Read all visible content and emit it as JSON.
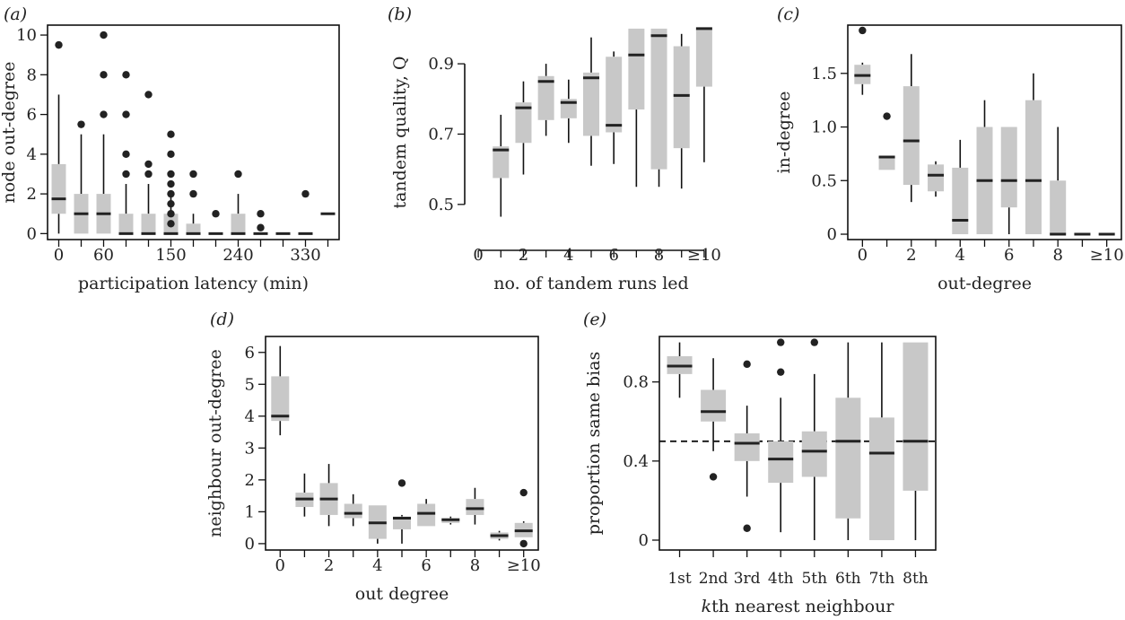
{
  "chart_data": [
    {
      "panel": "(a)",
      "type": "boxplot",
      "xlabel": "participation latency (min)",
      "ylabel": "node out-degree",
      "x_tick_labels": [
        "0",
        "60",
        "150",
        "240",
        "330"
      ],
      "x_tick_values": [
        0,
        60,
        150,
        240,
        330
      ],
      "x_box_spacing": 30,
      "xlim": [
        -15,
        375
      ],
      "y_ticks": [
        0,
        2,
        4,
        6,
        8,
        10
      ],
      "ylim": [
        -0.3,
        10.5
      ],
      "boxes": [
        {
          "x": 0,
          "q1": 1,
          "median": 1.75,
          "q3": 3.5,
          "whisker_low": 0,
          "whisker_high": 7,
          "outliers": [
            9.5
          ]
        },
        {
          "x": 30,
          "q1": 0,
          "median": 1,
          "q3": 2,
          "whisker_low": 0,
          "whisker_high": 5,
          "outliers": [
            5.5
          ]
        },
        {
          "x": 60,
          "q1": 0,
          "median": 1,
          "q3": 2,
          "whisker_low": 0,
          "whisker_high": 5,
          "outliers": [
            6,
            8,
            10
          ]
        },
        {
          "x": 90,
          "q1": 0,
          "median": 0,
          "q3": 1,
          "whisker_low": 0,
          "whisker_high": 2.5,
          "outliers": [
            3,
            4,
            6,
            8
          ]
        },
        {
          "x": 120,
          "q1": 0,
          "median": 0,
          "q3": 1,
          "whisker_low": 0,
          "whisker_high": 2.5,
          "outliers": [
            3,
            3.5,
            7
          ]
        },
        {
          "x": 150,
          "q1": 0,
          "median": 0,
          "q3": 1,
          "whisker_low": 0,
          "whisker_high": 2,
          "outliers": [
            0.5,
            1,
            1.5,
            2,
            2.5,
            3,
            4,
            5
          ]
        },
        {
          "x": 180,
          "q1": 0,
          "median": 0,
          "q3": 0.5,
          "whisker_low": 0,
          "whisker_high": 1,
          "outliers": [
            2,
            3
          ]
        },
        {
          "x": 210,
          "q1": 0,
          "median": 0,
          "q3": 0,
          "whisker_low": 0,
          "whisker_high": 0,
          "outliers": [
            1
          ]
        },
        {
          "x": 240,
          "q1": 0,
          "median": 0,
          "q3": 1,
          "whisker_low": 0,
          "whisker_high": 2,
          "outliers": [
            3
          ]
        },
        {
          "x": 270,
          "q1": 0,
          "median": 0,
          "q3": 0,
          "whisker_low": 0,
          "whisker_high": 0,
          "outliers": [
            0.3,
            1
          ]
        },
        {
          "x": 300,
          "q1": 0,
          "median": 0,
          "q3": 0,
          "whisker_low": 0,
          "whisker_high": 0,
          "outliers": []
        },
        {
          "x": 330,
          "q1": 0,
          "median": 0,
          "q3": 0,
          "whisker_low": 0,
          "whisker_high": 0,
          "outliers": [
            2
          ]
        },
        {
          "x": 360,
          "q1": 1,
          "median": 1,
          "q3": 1,
          "whisker_low": 1,
          "whisker_high": 1,
          "outliers": []
        }
      ]
    },
    {
      "panel": "(b)",
      "type": "boxplot",
      "xlabel": "no. of tandem runs led",
      "ylabel": "tandem quality, Q",
      "x_tick_labels": [
        "0",
        "2",
        "4",
        "6",
        "8",
        "≥10"
      ],
      "x_tick_values": [
        0,
        2,
        4,
        6,
        8,
        10
      ],
      "xlim": [
        -0.6,
        10.6
      ],
      "y_ticks": [
        0.5,
        0.7,
        0.9
      ],
      "ylim": [
        0.4,
        1.01
      ],
      "boxes": [
        {
          "x": 1,
          "q1": 0.575,
          "median": 0.655,
          "q3": 0.665,
          "whisker_low": 0.465,
          "whisker_high": 0.755,
          "outliers": []
        },
        {
          "x": 2,
          "q1": 0.675,
          "median": 0.775,
          "q3": 0.79,
          "whisker_low": 0.585,
          "whisker_high": 0.85,
          "outliers": []
        },
        {
          "x": 3,
          "q1": 0.74,
          "median": 0.85,
          "q3": 0.865,
          "whisker_low": 0.695,
          "whisker_high": 0.9,
          "outliers": []
        },
        {
          "x": 4,
          "q1": 0.745,
          "median": 0.79,
          "q3": 0.8,
          "whisker_low": 0.675,
          "whisker_high": 0.855,
          "outliers": []
        },
        {
          "x": 5,
          "q1": 0.695,
          "median": 0.86,
          "q3": 0.875,
          "whisker_low": 0.61,
          "whisker_high": 0.975,
          "outliers": []
        },
        {
          "x": 6,
          "q1": 0.705,
          "median": 0.725,
          "q3": 0.92,
          "whisker_low": 0.615,
          "whisker_high": 0.935,
          "outliers": []
        },
        {
          "x": 7,
          "q1": 0.77,
          "median": 0.925,
          "q3": 1.0,
          "whisker_low": 0.55,
          "whisker_high": 1.0,
          "outliers": []
        },
        {
          "x": 8,
          "q1": 0.6,
          "median": 0.98,
          "q3": 1.0,
          "whisker_low": 0.55,
          "whisker_high": 1.0,
          "outliers": []
        },
        {
          "x": 9,
          "q1": 0.66,
          "median": 0.81,
          "q3": 0.95,
          "whisker_low": 0.545,
          "whisker_high": 0.985,
          "outliers": []
        },
        {
          "x": 10,
          "q1": 0.835,
          "median": 1.0,
          "q3": 1.0,
          "whisker_low": 0.62,
          "whisker_high": 1.0,
          "outliers": []
        }
      ]
    },
    {
      "panel": "(c)",
      "type": "boxplot",
      "xlabel": "out-degree",
      "ylabel": "in-degree",
      "x_tick_labels": [
        "0",
        "2",
        "4",
        "6",
        "8",
        "≥10"
      ],
      "x_tick_values": [
        0,
        2,
        4,
        6,
        8,
        10
      ],
      "xlim": [
        -0.6,
        10.6
      ],
      "y_ticks": [
        0,
        0.5,
        1.0,
        1.5
      ],
      "y_tick_labels": [
        "0",
        "0.5",
        "1.0",
        "1.5"
      ],
      "ylim": [
        -0.05,
        1.95
      ],
      "boxes": [
        {
          "x": 0,
          "q1": 1.4,
          "median": 1.48,
          "q3": 1.58,
          "whisker_low": 1.3,
          "whisker_high": 1.6,
          "outliers": [
            1.9
          ]
        },
        {
          "x": 1,
          "q1": 0.6,
          "median": 0.72,
          "q3": 0.73,
          "whisker_low": 0.6,
          "whisker_high": 0.73,
          "outliers": [
            1.1
          ]
        },
        {
          "x": 2,
          "q1": 0.46,
          "median": 0.87,
          "q3": 1.38,
          "whisker_low": 0.3,
          "whisker_high": 1.68,
          "outliers": []
        },
        {
          "x": 3,
          "q1": 0.4,
          "median": 0.55,
          "q3": 0.65,
          "whisker_low": 0.35,
          "whisker_high": 0.68,
          "outliers": []
        },
        {
          "x": 4,
          "q1": 0.0,
          "median": 0.13,
          "q3": 0.62,
          "whisker_low": 0.0,
          "whisker_high": 0.88,
          "outliers": []
        },
        {
          "x": 5,
          "q1": 0.0,
          "median": 0.5,
          "q3": 1.0,
          "whisker_low": 0.0,
          "whisker_high": 1.25,
          "outliers": []
        },
        {
          "x": 6,
          "q1": 0.25,
          "median": 0.5,
          "q3": 1.0,
          "whisker_low": 0.0,
          "whisker_high": 1.0,
          "outliers": []
        },
        {
          "x": 7,
          "q1": 0.0,
          "median": 0.5,
          "q3": 1.25,
          "whisker_low": 0.0,
          "whisker_high": 1.5,
          "outliers": []
        },
        {
          "x": 8,
          "q1": 0.0,
          "median": 0.0,
          "q3": 0.5,
          "whisker_low": 0.0,
          "whisker_high": 1.0,
          "outliers": []
        },
        {
          "x": 9,
          "q1": 0.0,
          "median": 0.0,
          "q3": 0.0,
          "whisker_low": 0.0,
          "whisker_high": 0.0,
          "outliers": []
        },
        {
          "x": 10,
          "q1": 0.0,
          "median": 0.0,
          "q3": 0.0,
          "whisker_low": 0.0,
          "whisker_high": 0.0,
          "outliers": []
        }
      ]
    },
    {
      "panel": "(d)",
      "type": "boxplot",
      "xlabel": "out degree",
      "ylabel": "neighbour out-degree",
      "x_tick_labels": [
        "0",
        "2",
        "4",
        "6",
        "8",
        "≥10"
      ],
      "x_tick_values": [
        0,
        2,
        4,
        6,
        8,
        10
      ],
      "xlim": [
        -0.6,
        10.6
      ],
      "y_ticks": [
        0,
        1,
        2,
        3,
        4,
        5,
        6
      ],
      "ylim": [
        -0.2,
        6.5
      ],
      "boxes": [
        {
          "x": 0,
          "q1": 3.85,
          "median": 4.0,
          "q3": 5.25,
          "whisker_low": 3.4,
          "whisker_high": 6.2,
          "outliers": []
        },
        {
          "x": 1,
          "q1": 1.15,
          "median": 1.4,
          "q3": 1.6,
          "whisker_low": 0.85,
          "whisker_high": 2.2,
          "outliers": []
        },
        {
          "x": 2,
          "q1": 0.9,
          "median": 1.4,
          "q3": 1.9,
          "whisker_low": 0.55,
          "whisker_high": 2.5,
          "outliers": []
        },
        {
          "x": 3,
          "q1": 0.8,
          "median": 0.95,
          "q3": 1.25,
          "whisker_low": 0.55,
          "whisker_high": 1.55,
          "outliers": []
        },
        {
          "x": 4,
          "q1": 0.15,
          "median": 0.65,
          "q3": 1.2,
          "whisker_low": 0.0,
          "whisker_high": 1.2,
          "outliers": []
        },
        {
          "x": 5,
          "q1": 0.45,
          "median": 0.8,
          "q3": 0.85,
          "whisker_low": 0.0,
          "whisker_high": 0.9,
          "outliers": [
            1.9
          ]
        },
        {
          "x": 6,
          "q1": 0.55,
          "median": 0.95,
          "q3": 1.25,
          "whisker_low": 0.55,
          "whisker_high": 1.4,
          "outliers": []
        },
        {
          "x": 7,
          "q1": 0.65,
          "median": 0.75,
          "q3": 0.8,
          "whisker_low": 0.6,
          "whisker_high": 0.85,
          "outliers": []
        },
        {
          "x": 8,
          "q1": 0.9,
          "median": 1.1,
          "q3": 1.4,
          "whisker_low": 0.6,
          "whisker_high": 1.75,
          "outliers": []
        },
        {
          "x": 9,
          "q1": 0.15,
          "median": 0.25,
          "q3": 0.35,
          "whisker_low": 0.1,
          "whisker_high": 0.4,
          "outliers": []
        },
        {
          "x": 10,
          "q1": 0.2,
          "median": 0.4,
          "q3": 0.65,
          "whisker_low": 0.2,
          "whisker_high": 0.7,
          "outliers": [
            0.0,
            1.6
          ]
        }
      ]
    },
    {
      "panel": "(e)",
      "type": "boxplot",
      "xlabel": "kth nearest neighbour",
      "xlabel_italic_prefix": "k",
      "xlabel_rest": "th nearest neighbour",
      "ylabel": "proportion same bias",
      "categories": [
        "1st",
        "2nd",
        "3rd",
        "4th",
        "5th",
        "6th",
        "7th",
        "8th"
      ],
      "xlim": [
        0.4,
        8.6
      ],
      "y_ticks": [
        0,
        0.4,
        0.8
      ],
      "ylim": [
        -0.05,
        1.03
      ],
      "reference_line": 0.5,
      "boxes": [
        {
          "x": 1,
          "q1": 0.84,
          "median": 0.88,
          "q3": 0.93,
          "whisker_low": 0.72,
          "whisker_high": 1.0,
          "outliers": []
        },
        {
          "x": 2,
          "q1": 0.6,
          "median": 0.65,
          "q3": 0.76,
          "whisker_low": 0.45,
          "whisker_high": 0.92,
          "outliers": [
            0.32
          ]
        },
        {
          "x": 3,
          "q1": 0.4,
          "median": 0.49,
          "q3": 0.54,
          "whisker_low": 0.22,
          "whisker_high": 0.68,
          "outliers": [
            0.06,
            0.89
          ]
        },
        {
          "x": 4,
          "q1": 0.29,
          "median": 0.41,
          "q3": 0.5,
          "whisker_low": 0.04,
          "whisker_high": 0.72,
          "outliers": [
            0.85,
            1.0
          ]
        },
        {
          "x": 5,
          "q1": 0.32,
          "median": 0.45,
          "q3": 0.55,
          "whisker_low": 0.0,
          "whisker_high": 0.84,
          "outliers": [
            1.0
          ]
        },
        {
          "x": 6,
          "q1": 0.11,
          "median": 0.5,
          "q3": 0.72,
          "whisker_low": 0.0,
          "whisker_high": 1.0,
          "outliers": []
        },
        {
          "x": 7,
          "q1": 0.0,
          "median": 0.44,
          "q3": 0.62,
          "whisker_low": 0.0,
          "whisker_high": 1.0,
          "outliers": []
        },
        {
          "x": 8,
          "q1": 0.25,
          "median": 0.5,
          "q3": 1.0,
          "whisker_low": 0.0,
          "whisker_high": 1.0,
          "outliers": []
        }
      ]
    }
  ],
  "colors": {
    "box_fill": "#c8c8c8",
    "median": "#222222",
    "whisker": "#111111",
    "outlier": "#222222",
    "axis": "#111111"
  }
}
